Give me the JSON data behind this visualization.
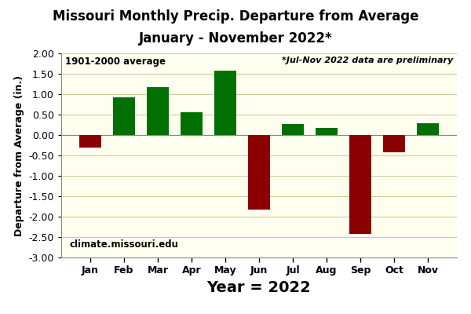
{
  "months": [
    "Jan",
    "Feb",
    "Mar",
    "Apr",
    "May",
    "Jun",
    "Jul",
    "Aug",
    "Sep",
    "Oct",
    "Nov"
  ],
  "values": [
    -0.3,
    0.92,
    1.18,
    0.55,
    1.58,
    -1.82,
    0.27,
    0.17,
    -2.43,
    -0.42,
    0.28
  ],
  "title_line1": "Missouri Monthly Precip. Departure from Average",
  "title_line2": "January - November 2022*",
  "xlabel": "Year = 2022",
  "ylabel": "Departure from Average (in.)",
  "ylim": [
    -3.0,
    2.0
  ],
  "yticks": [
    -3.0,
    -2.5,
    -2.0,
    -1.5,
    -1.0,
    -0.5,
    0.0,
    0.5,
    1.0,
    1.5,
    2.0
  ],
  "color_positive": "#007000",
  "color_negative": "#8B0000",
  "fig_bg_color": "#FFFFFF",
  "plot_bg_color": "#FFFFF0",
  "annotation_left": "1901-2000 average",
  "annotation_right": "*Jul-Nov 2022 data are preliminary",
  "annotation_bottom": "climate.missouri.edu",
  "grid_color": "#CCCC99",
  "bar_width": 0.65,
  "title_fontsize": 12,
  "xlabel_fontsize": 14,
  "ylabel_fontsize": 9,
  "tick_labelsize": 9,
  "xtick_labelsize": 9
}
